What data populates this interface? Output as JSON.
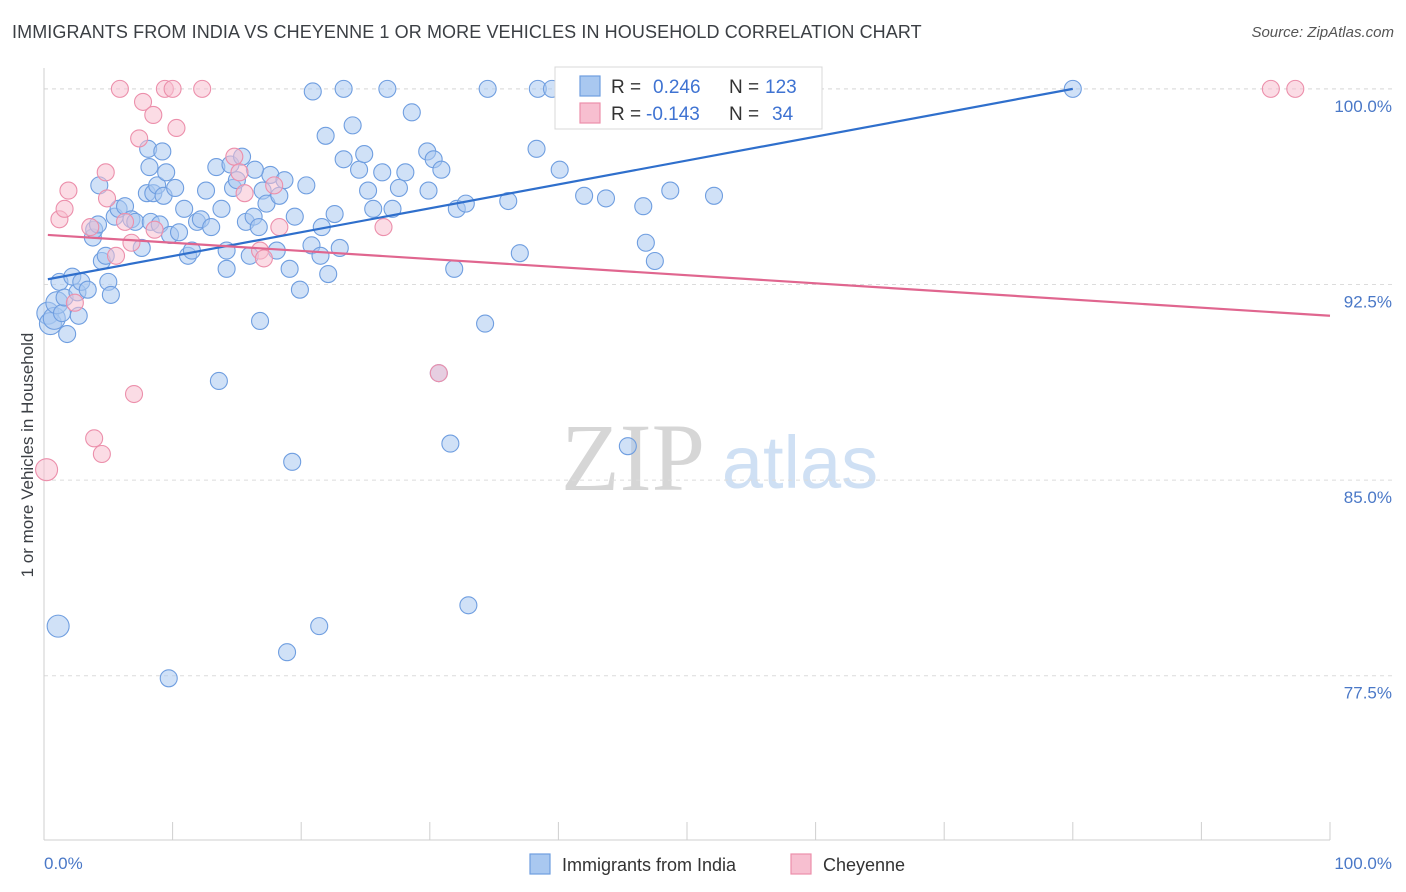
{
  "header": {
    "title": "IMMIGRANTS FROM INDIA VS CHEYENNE 1 OR MORE VEHICLES IN HOUSEHOLD CORRELATION CHART",
    "source": "Source: ZipAtlas.com"
  },
  "watermark": {
    "zip": "ZIP",
    "atlas": "atlas"
  },
  "colors": {
    "blue_fill": "#a9c8f0",
    "blue_stroke": "#6f9ee0",
    "blue_line": "#2f6fcc",
    "pink_fill": "#f7bfd0",
    "pink_stroke": "#ec8fab",
    "pink_line": "#e0668f",
    "grid": "#dcdcdc",
    "axis_text": "#4a78c7"
  },
  "stats": {
    "blue": {
      "r_label": "R =",
      "r_value": "0.246",
      "n_label": "N =",
      "n_value": "123"
    },
    "pink": {
      "r_label": "R =",
      "r_value": "-0.143",
      "n_label": "N =",
      "n_value": "34"
    }
  },
  "chart_data": {
    "type": "scatter",
    "xlabel": "",
    "ylabel": "1 or more Vehicles in Household",
    "xlim": [
      0,
      100
    ],
    "ylim": [
      71.2,
      100.8
    ],
    "x_tick_labels": [
      "0.0%",
      "100.0%"
    ],
    "y_ticks": [
      {
        "value": 100.0,
        "label": "100.0%"
      },
      {
        "value": 92.5,
        "label": "92.5%"
      },
      {
        "value": 85.0,
        "label": "85.0%"
      },
      {
        "value": 77.5,
        "label": "77.5%"
      }
    ],
    "grid": "horizontal dashed",
    "legend_position": "bottom-center",
    "series": [
      {
        "name": "Immigrants from India",
        "color": "#a9c8f0",
        "trend": {
          "x": [
            0.3,
            80.0
          ],
          "y": [
            92.7,
            100.0
          ]
        },
        "points": [
          [
            0.3,
            91.4
          ],
          [
            0.5,
            91.0
          ],
          [
            0.8,
            91.2
          ],
          [
            1.0,
            91.8
          ],
          [
            1.2,
            92.6
          ],
          [
            1.4,
            91.4
          ],
          [
            1.6,
            92.0
          ],
          [
            1.8,
            90.6
          ],
          [
            2.2,
            92.8
          ],
          [
            2.6,
            92.2
          ],
          [
            2.7,
            91.3
          ],
          [
            2.9,
            92.6
          ],
          [
            3.4,
            92.3
          ],
          [
            3.8,
            94.3
          ],
          [
            3.9,
            94.6
          ],
          [
            4.2,
            94.8
          ],
          [
            4.3,
            96.3
          ],
          [
            4.5,
            93.4
          ],
          [
            4.8,
            93.6
          ],
          [
            5.0,
            92.6
          ],
          [
            5.2,
            92.1
          ],
          [
            5.5,
            95.1
          ],
          [
            5.8,
            95.4
          ],
          [
            6.3,
            95.5
          ],
          [
            6.8,
            95.0
          ],
          [
            7.1,
            94.9
          ],
          [
            7.6,
            93.9
          ],
          [
            8.0,
            96.0
          ],
          [
            8.3,
            94.9
          ],
          [
            8.5,
            96.0
          ],
          [
            8.8,
            96.3
          ],
          [
            9.0,
            94.8
          ],
          [
            9.3,
            95.9
          ],
          [
            9.5,
            96.8
          ],
          [
            9.8,
            94.4
          ],
          [
            10.2,
            96.2
          ],
          [
            10.5,
            94.5
          ],
          [
            10.9,
            95.4
          ],
          [
            11.2,
            93.6
          ],
          [
            11.5,
            93.8
          ],
          [
            11.9,
            94.9
          ],
          [
            12.2,
            95.0
          ],
          [
            12.6,
            96.1
          ],
          [
            13.0,
            94.7
          ],
          [
            13.4,
            97.0
          ],
          [
            13.8,
            95.4
          ],
          [
            14.2,
            93.8
          ],
          [
            14.5,
            97.1
          ],
          [
            14.7,
            96.2
          ],
          [
            15.0,
            96.5
          ],
          [
            15.4,
            97.4
          ],
          [
            15.7,
            94.9
          ],
          [
            16.0,
            93.6
          ],
          [
            16.3,
            95.1
          ],
          [
            16.7,
            94.7
          ],
          [
            17.0,
            96.1
          ],
          [
            17.3,
            95.6
          ],
          [
            17.6,
            96.7
          ],
          [
            18.1,
            93.8
          ],
          [
            18.3,
            95.9
          ],
          [
            18.7,
            96.5
          ],
          [
            19.1,
            93.1
          ],
          [
            19.5,
            95.1
          ],
          [
            19.9,
            92.3
          ],
          [
            20.4,
            96.3
          ],
          [
            20.8,
            94.0
          ],
          [
            21.5,
            93.6
          ],
          [
            21.6,
            94.7
          ],
          [
            21.9,
            98.2
          ],
          [
            22.1,
            92.9
          ],
          [
            22.6,
            95.2
          ],
          [
            23.0,
            93.9
          ],
          [
            23.3,
            97.3
          ],
          [
            24.0,
            98.6
          ],
          [
            24.5,
            96.9
          ],
          [
            24.9,
            97.5
          ],
          [
            25.2,
            96.1
          ],
          [
            25.6,
            95.4
          ],
          [
            26.3,
            96.8
          ],
          [
            27.1,
            95.4
          ],
          [
            27.6,
            96.2
          ],
          [
            28.1,
            96.8
          ],
          [
            8.1,
            97.7
          ],
          [
            9.2,
            97.6
          ],
          [
            8.2,
            97.0
          ],
          [
            16.4,
            96.9
          ],
          [
            14.2,
            93.1
          ],
          [
            20.9,
            99.9
          ],
          [
            23.3,
            100.0
          ],
          [
            26.7,
            100.0
          ],
          [
            28.6,
            99.1
          ],
          [
            29.8,
            97.6
          ],
          [
            30.3,
            97.3
          ],
          [
            29.9,
            96.1
          ],
          [
            30.9,
            96.9
          ],
          [
            32.1,
            95.4
          ],
          [
            34.5,
            100.0
          ],
          [
            38.4,
            100.0
          ],
          [
            39.5,
            100.0
          ],
          [
            42.3,
            99.8
          ],
          [
            45.2,
            99.9
          ],
          [
            49.6,
            100.0
          ],
          [
            36.1,
            95.7
          ],
          [
            38.3,
            97.7
          ],
          [
            40.1,
            96.9
          ],
          [
            42.0,
            95.9
          ],
          [
            46.6,
            95.5
          ],
          [
            48.7,
            96.1
          ],
          [
            51.8,
            99.8
          ],
          [
            52.1,
            95.9
          ],
          [
            47.5,
            93.4
          ],
          [
            46.8,
            94.1
          ],
          [
            43.7,
            95.8
          ],
          [
            37.0,
            93.7
          ],
          [
            32.8,
            95.6
          ],
          [
            31.9,
            93.1
          ],
          [
            30.7,
            89.1
          ],
          [
            31.6,
            86.4
          ],
          [
            33.0,
            80.2
          ],
          [
            34.3,
            91.0
          ],
          [
            45.4,
            86.3
          ],
          [
            19.3,
            85.7
          ],
          [
            18.9,
            78.4
          ],
          [
            21.4,
            79.4
          ],
          [
            13.6,
            88.8
          ],
          [
            16.8,
            91.1
          ],
          [
            1.1,
            79.4
          ],
          [
            9.7,
            77.4
          ],
          [
            80.0,
            100.0
          ]
        ]
      },
      {
        "name": "Cheyenne",
        "color": "#f7bfd0",
        "trend": {
          "x": [
            0.3,
            100.0
          ],
          "y": [
            94.4,
            91.3
          ]
        },
        "points": [
          [
            0.2,
            85.4
          ],
          [
            1.2,
            95.0
          ],
          [
            1.6,
            95.4
          ],
          [
            1.9,
            96.1
          ],
          [
            2.4,
            91.8
          ],
          [
            3.6,
            94.7
          ],
          [
            3.9,
            86.6
          ],
          [
            4.5,
            86.0
          ],
          [
            4.8,
            96.8
          ],
          [
            4.9,
            95.8
          ],
          [
            5.6,
            93.6
          ],
          [
            5.9,
            100.0
          ],
          [
            6.3,
            94.9
          ],
          [
            6.8,
            94.1
          ],
          [
            7.0,
            88.3
          ],
          [
            7.4,
            98.1
          ],
          [
            7.7,
            99.5
          ],
          [
            8.5,
            99.0
          ],
          [
            8.6,
            94.6
          ],
          [
            9.4,
            100.0
          ],
          [
            10.0,
            100.0
          ],
          [
            10.3,
            98.5
          ],
          [
            12.3,
            100.0
          ],
          [
            14.8,
            97.4
          ],
          [
            15.2,
            96.8
          ],
          [
            15.6,
            96.0
          ],
          [
            16.8,
            93.8
          ],
          [
            17.1,
            93.5
          ],
          [
            17.9,
            96.3
          ],
          [
            18.3,
            94.7
          ],
          [
            26.4,
            94.7
          ],
          [
            30.7,
            89.1
          ],
          [
            95.4,
            100.0
          ],
          [
            97.3,
            100.0
          ]
        ]
      }
    ]
  },
  "legend": {
    "items": [
      {
        "label": "Immigrants from India"
      },
      {
        "label": "Cheyenne"
      }
    ]
  }
}
